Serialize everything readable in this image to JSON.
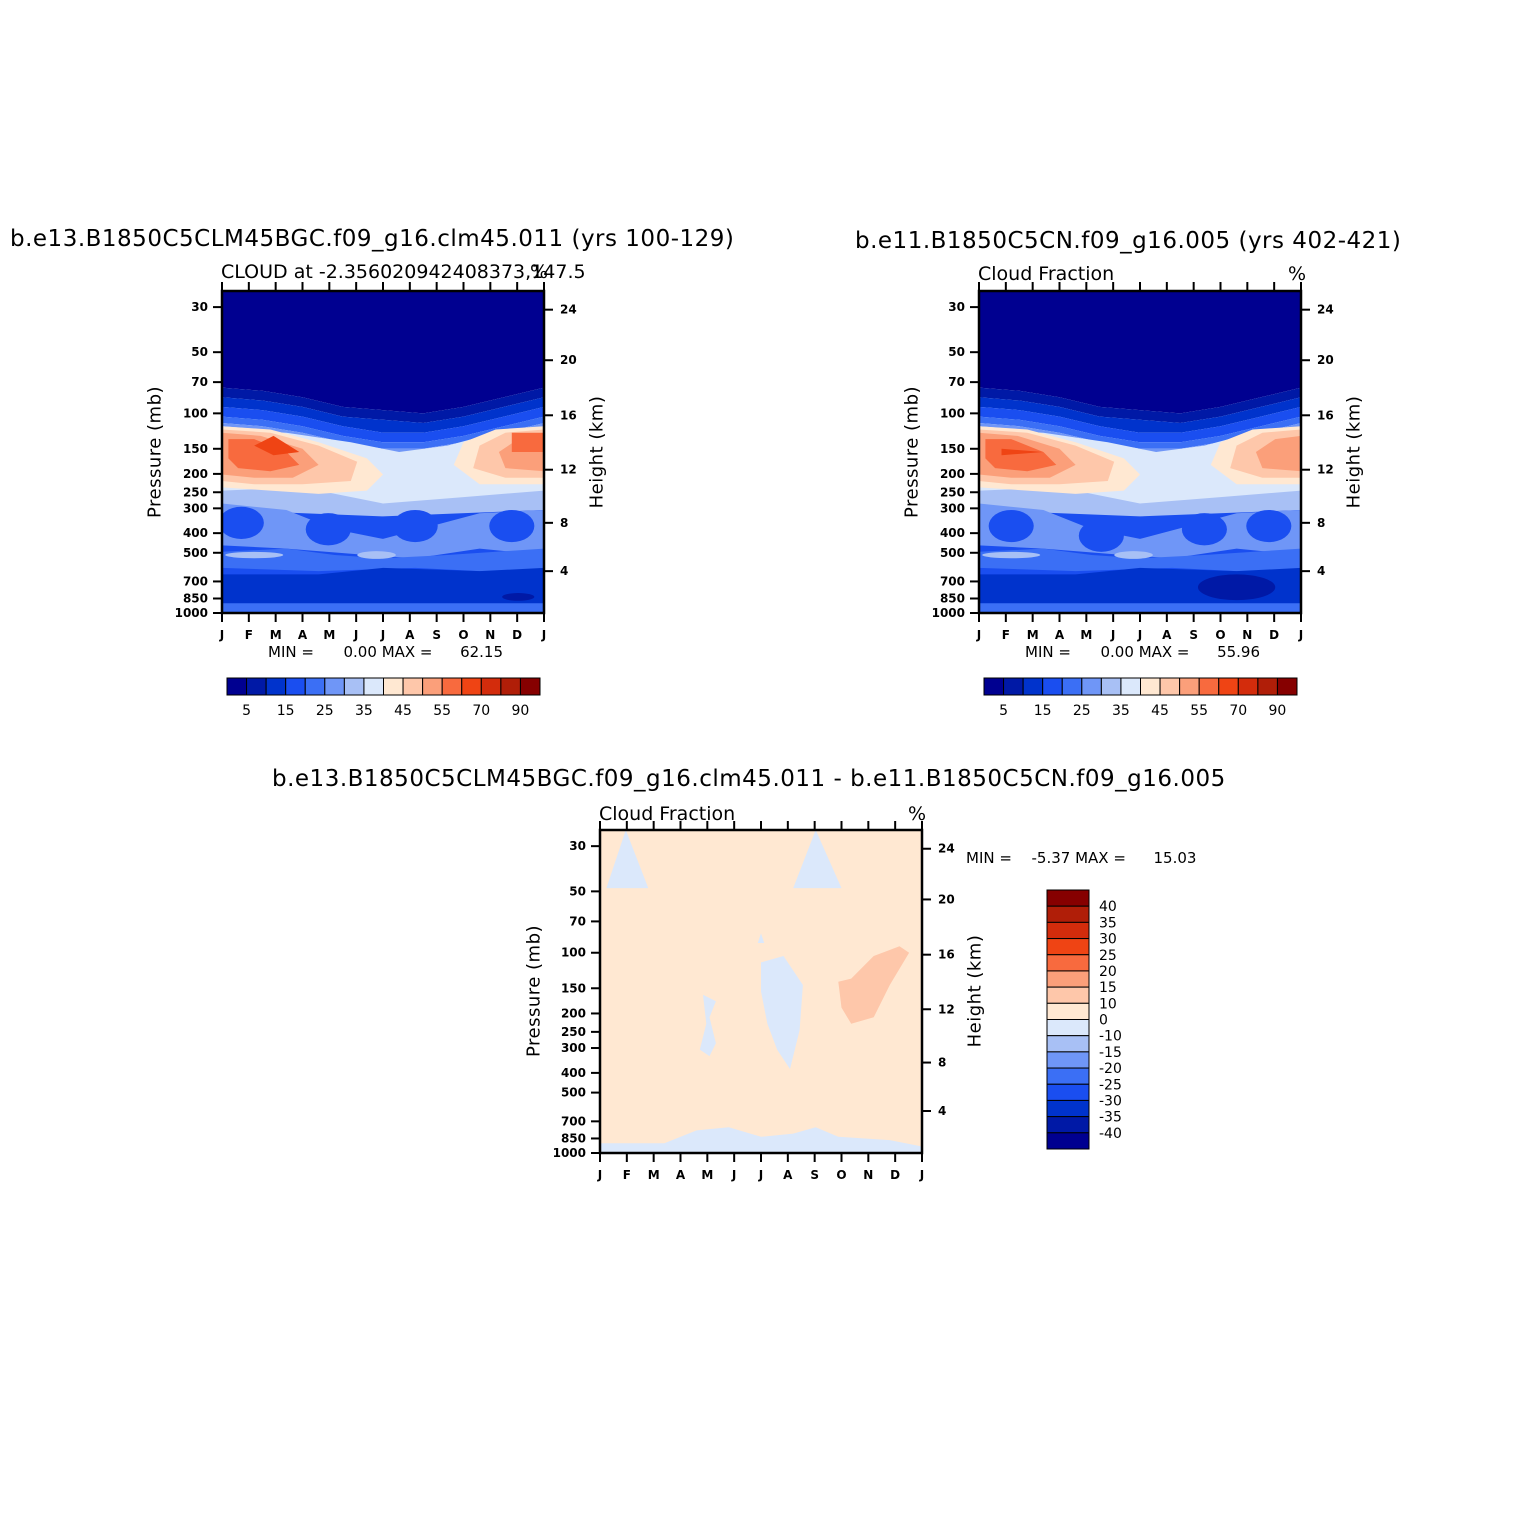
{
  "panels": [
    {
      "id": "model1",
      "title": "b.e13.B1850C5CLM45BGC.f09_g16.clm45.011 (yrs 100-129)",
      "subtitle": "CLOUD at -2.356020942408373,147.5",
      "units": "%",
      "min_label": "MIN =",
      "min_value": "0.00",
      "max_label": "MAX =",
      "max_value": "62.15",
      "ylabel_left": "Pressure (mb)",
      "ylabel_right": "Height (km)"
    },
    {
      "id": "model2",
      "title": "b.e11.B1850C5CN.f09_g16.005 (yrs 402-421)",
      "subtitle": "Cloud Fraction",
      "units": "%",
      "min_label": "MIN =",
      "min_value": "0.00",
      "max_label": "MAX =",
      "max_value": "55.96",
      "ylabel_left": "Pressure (mb)",
      "ylabel_right": "Height (km)"
    },
    {
      "id": "difference",
      "title": "b.e13.B1850C5CLM45BGC.f09_g16.clm45.011 - b.e11.B1850C5CN.f09_g16.005",
      "subtitle": "Cloud Fraction",
      "units": "%",
      "min_label": "MIN =",
      "min_value": "-5.37",
      "max_label": "MAX =",
      "max_value": "15.03",
      "ylabel_left": "Pressure (mb)",
      "ylabel_right": "Height (km)"
    }
  ],
  "chart_data": [
    {
      "type": "heatmap",
      "panel": "model1",
      "x_ticks": [
        "J",
        "F",
        "M",
        "A",
        "M",
        "J",
        "J",
        "A",
        "S",
        "O",
        "N",
        "D",
        "J"
      ],
      "pressure_ticks": [
        "30",
        "50",
        "70",
        "100",
        "150",
        "200",
        "250",
        "300",
        "400",
        "500",
        "700",
        "850",
        "1000"
      ],
      "height_ticks": [
        "24",
        "20",
        "16",
        "12",
        "8",
        "4"
      ],
      "colorbar_labels": [
        "5",
        "15",
        "25",
        "35",
        "45",
        "55",
        "70",
        "90"
      ],
      "colorbar_colors": [
        "#000090",
        "#0019a6",
        "#0033cc",
        "#1a4ef0",
        "#3b6ff5",
        "#6f96f7",
        "#a8c0f5",
        "#dbe8fb",
        "#ffe8d2",
        "#fec7aa",
        "#fb9f7a",
        "#f86a3e",
        "#ef4414",
        "#d32c0c",
        "#b01e08",
        "#860000"
      ]
    },
    {
      "type": "heatmap",
      "panel": "model2",
      "x_ticks": [
        "J",
        "F",
        "M",
        "A",
        "M",
        "J",
        "J",
        "A",
        "S",
        "O",
        "N",
        "D",
        "J"
      ],
      "pressure_ticks": [
        "30",
        "50",
        "70",
        "100",
        "150",
        "200",
        "250",
        "300",
        "400",
        "500",
        "700",
        "850",
        "1000"
      ],
      "height_ticks": [
        "24",
        "20",
        "16",
        "12",
        "8",
        "4"
      ],
      "colorbar_labels": [
        "5",
        "15",
        "25",
        "35",
        "45",
        "55",
        "70",
        "90"
      ],
      "colorbar_colors": [
        "#000090",
        "#0019a6",
        "#0033cc",
        "#1a4ef0",
        "#3b6ff5",
        "#6f96f7",
        "#a8c0f5",
        "#dbe8fb",
        "#ffe8d2",
        "#fec7aa",
        "#fb9f7a",
        "#f86a3e",
        "#ef4414",
        "#d32c0c",
        "#b01e08",
        "#860000"
      ]
    },
    {
      "type": "heatmap",
      "panel": "difference",
      "x_ticks": [
        "J",
        "F",
        "M",
        "A",
        "M",
        "J",
        "J",
        "A",
        "S",
        "O",
        "N",
        "D",
        "J"
      ],
      "pressure_ticks": [
        "30",
        "50",
        "70",
        "100",
        "150",
        "200",
        "250",
        "300",
        "400",
        "500",
        "700",
        "850",
        "1000"
      ],
      "height_ticks": [
        "24",
        "20",
        "16",
        "12",
        "8",
        "4"
      ],
      "colorbar_labels": [
        "40",
        "35",
        "30",
        "25",
        "20",
        "15",
        "10",
        "0",
        "-10",
        "-15",
        "-20",
        "-25",
        "-30",
        "-35",
        "-40"
      ],
      "colorbar_colors": [
        "#860000",
        "#b01e08",
        "#d32c0c",
        "#ef4414",
        "#f86a3e",
        "#fb9f7a",
        "#fec7aa",
        "#ffe8d2",
        "#dbe8fb",
        "#a8c0f5",
        "#6f96f7",
        "#3b6ff5",
        "#1a4ef0",
        "#0033cc",
        "#0019a6",
        "#000090"
      ]
    }
  ]
}
